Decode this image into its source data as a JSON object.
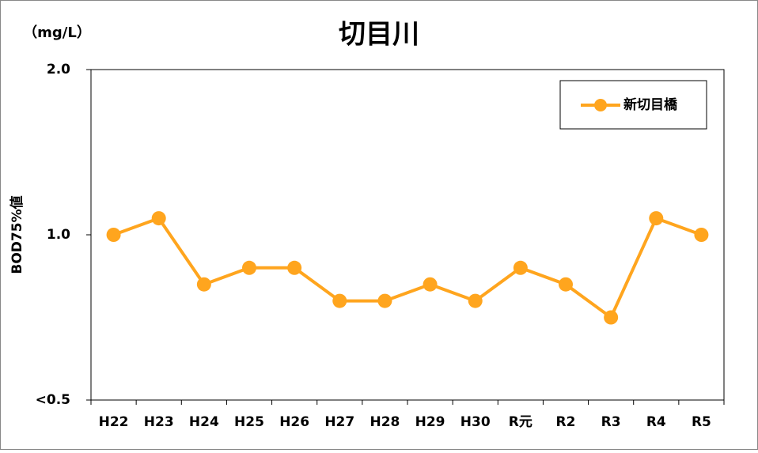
{
  "chart_data": {
    "type": "line",
    "title": "切目川",
    "unit_label": "（mg/L）",
    "y_label": "BOD75%値",
    "categories": [
      "H22",
      "H23",
      "H24",
      "H25",
      "H26",
      "H27",
      "H28",
      "H29",
      "H30",
      "R元",
      "R2",
      "R3",
      "R4",
      "R5"
    ],
    "series": [
      {
        "name": "新切目橋",
        "color": "#FFA51E",
        "values": [
          1.0,
          1.1,
          0.7,
          0.8,
          0.8,
          0.6,
          0.6,
          0.7,
          0.6,
          0.8,
          0.7,
          0.5,
          1.1,
          1.0
        ]
      }
    ],
    "ylim": [
      0,
      2.0
    ],
    "yticks": [
      {
        "value": 0,
        "label": "<0.5"
      },
      {
        "value": 1.0,
        "label": "1.0"
      },
      {
        "value": 2.0,
        "label": "2.0"
      }
    ],
    "legend": "top-right"
  }
}
